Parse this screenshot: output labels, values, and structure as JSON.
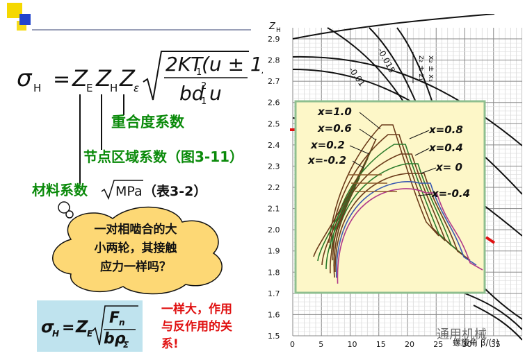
{
  "formula_main": {
    "sigma": "σ",
    "sigma_sub": "H",
    "eq": "=",
    "ze": "Z",
    "ze_sub": "E",
    "zh": "Z",
    "zh_sub": "H",
    "zeps": "Z",
    "zeps_sub": "ε",
    "numerator": "2KT",
    "num_sub": "1",
    "num_rest": "(u ± 1)",
    "den_b": "bd",
    "den_sup": "2",
    "den_sub": "1",
    "den_u": "u"
  },
  "labels": {
    "overlap": "重合度系数",
    "zone": "节点区域系数（图3-11）",
    "material": "材料系数",
    "material_unit": "MPa",
    "material_ref": "（表3-2）"
  },
  "bubble": {
    "line1": "一对相啮合的大",
    "line2": "小两轮，其接触",
    "line3": "应力一样吗？"
  },
  "formula_box": {
    "sigma": "σ",
    "sigma_sub": "H",
    "eq": "=",
    "z": "Z",
    "z_sub": "E",
    "num": "F",
    "num_sub": "n",
    "den": "bρ",
    "den_sub": "Σ"
  },
  "answer": {
    "line1": "一样大，作用",
    "line2": "与反作用的关",
    "line3": "系!"
  },
  "figure": {
    "y_axis_label": "Z",
    "y_axis_label_sub": "H",
    "x_axis_label": "螺旋角 β/(°)",
    "x_ticks": [
      "0",
      "5",
      "10",
      "15",
      "20",
      "25",
      "30",
      "35"
    ],
    "y_ticks": [
      "2.9",
      "2.8",
      "2.7",
      "2.6",
      "2.5",
      "2.4",
      "2.3",
      "2.2",
      "2.1",
      "2.0",
      "1.9",
      "1.8",
      "1.7",
      "1.6",
      "1.5"
    ],
    "curve_labels": [
      "-0.015",
      "-0.01"
    ],
    "rotated_label_1": "x₂ ± x₁",
    "rotated_label_2": "z₂ ± z₁",
    "inset_labels": [
      "x=1.0",
      "x=0.6",
      "x=0.2",
      "x=-0.2",
      "x=0.8",
      "x=0.4",
      "x= 0",
      "x=-0.4"
    ],
    "colors": {
      "inset_bg": "#fdf7c8",
      "inset_border": "#8fbf8f",
      "red_marker": "#e01010"
    }
  },
  "watermark": "通用机械"
}
